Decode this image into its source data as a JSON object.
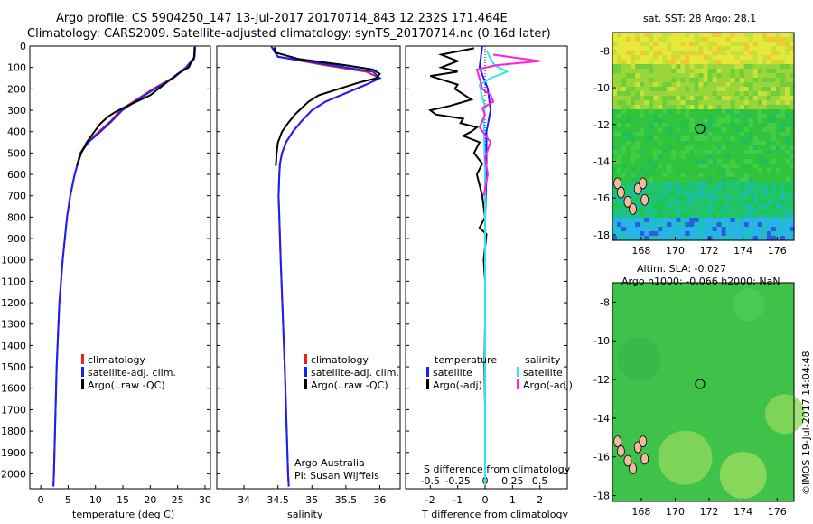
{
  "header": {
    "line1": "Argo profile: CS 5904250_147 13-Jul-2017 20170714_843 12.232S 171.464E",
    "line2": "Climatology: CARS2009. Satellite-adjusted climatology: synTS_20170714.nc (0.16d later)"
  },
  "colors": {
    "climatology": "#e8231f",
    "satellite": "#1420ff",
    "argo": "#000000",
    "sal_satellite": "#2ee6e6",
    "sal_argo": "#ff1fe0"
  },
  "panels": {
    "temperature": {
      "xlabel": "temperature (deg C)",
      "legend": [
        "climatology",
        "satellite-adj. clim.",
        "Argo(..raw -QC)"
      ]
    },
    "salinity": {
      "xlabel": "salinity",
      "legend": [
        "climatology",
        "satellite-adj. clim.",
        "Argo(..raw -QC)"
      ],
      "credit1": "Argo Australia",
      "credit2": "PI: Susan Wijffels"
    },
    "difference": {
      "top_label": "S difference from climatology",
      "xlabel": "T difference from climatology",
      "legend_head_t": "temperature",
      "legend_head_s": "salinity",
      "legend_t": [
        "satellite",
        "Argo(-adj)"
      ],
      "legend_s": [
        "satellite",
        "Argo(-adj)"
      ]
    }
  },
  "maps": {
    "sst_title": "sat. SST: 28 Argo: 28.1",
    "sla_title1": "Altim. SLA: -0.027",
    "sla_title2": "Argo h1000: -0.066 h2000: NaN",
    "xticks": [
      "168",
      "170",
      "172",
      "174",
      "176"
    ],
    "yticks": [
      "-8",
      "-10",
      "-12",
      "-14",
      "-16",
      "-18"
    ],
    "argo_lon": 171.464,
    "argo_lat": -12.232,
    "stamp": "©IMOS 19-Jul-2017 14:04:48"
  },
  "chart_data": [
    {
      "type": "line",
      "name": "temperature profile",
      "xlabel": "temperature (deg C)",
      "ylabel": "",
      "xlim": [
        -2,
        31
      ],
      "ylim": [
        2070,
        0
      ],
      "xticks": [
        0,
        5,
        10,
        15,
        20,
        25,
        30
      ],
      "yticks": [
        0,
        100,
        200,
        300,
        400,
        500,
        600,
        700,
        800,
        900,
        1000,
        1100,
        1200,
        1300,
        1400,
        1500,
        1600,
        1700,
        1800,
        1900,
        2000
      ],
      "series": [
        {
          "name": "climatology",
          "depth": [
            0,
            50,
            100,
            150,
            200,
            250,
            300,
            350,
            400,
            450,
            500,
            600,
            700,
            800,
            1000,
            1200,
            1500,
            1800,
            2000,
            2060
          ],
          "values": [
            28.2,
            28.1,
            26.5,
            24.0,
            20.5,
            17.5,
            14.5,
            12.8,
            10.6,
            8.5,
            7.2,
            6.2,
            5.4,
            4.8,
            4.0,
            3.4,
            2.9,
            2.6,
            2.4,
            2.3
          ]
        },
        {
          "name": "satellite-adj. clim.",
          "depth": [
            0,
            50,
            100,
            150,
            200,
            250,
            300,
            350,
            400,
            450,
            500,
            600,
            700,
            800,
            1000,
            1200,
            1500,
            1800,
            2000,
            2060
          ],
          "values": [
            28.2,
            28.1,
            26.6,
            24.2,
            20.8,
            17.8,
            14.9,
            13.0,
            10.9,
            8.7,
            7.3,
            6.2,
            5.4,
            4.8,
            4.0,
            3.4,
            2.9,
            2.6,
            2.4,
            2.3
          ]
        },
        {
          "name": "Argo(..raw -QC)",
          "depth": [
            5,
            60,
            80,
            100,
            130,
            150,
            180,
            200,
            230,
            260,
            290,
            310,
            330,
            360,
            400,
            450,
            500,
            560
          ],
          "values": [
            28.1,
            28.0,
            27.4,
            27.0,
            25.0,
            24.0,
            22.5,
            21.5,
            20.0,
            17.5,
            15.0,
            13.5,
            12.3,
            11.0,
            9.8,
            8.4,
            7.4,
            6.6
          ]
        }
      ]
    },
    {
      "type": "line",
      "name": "salinity profile",
      "xlabel": "salinity",
      "ylabel": "",
      "xlim": [
        33.6,
        36.3
      ],
      "ylim": [
        2070,
        0
      ],
      "xticks": [
        34,
        34.5,
        35,
        35.5,
        36
      ],
      "series": [
        {
          "name": "climatology",
          "depth": [
            0,
            50,
            90,
            120,
            150,
            180,
            220,
            260,
            300,
            350,
            400,
            450,
            500,
            550,
            600,
            700,
            800,
            1000,
            1500,
            2000,
            2060
          ],
          "values": [
            34.4,
            34.5,
            35.2,
            35.8,
            36.0,
            35.8,
            35.5,
            35.2,
            35.0,
            34.85,
            34.72,
            34.62,
            34.56,
            34.53,
            34.52,
            34.51,
            34.52,
            34.54,
            34.6,
            34.65,
            34.66
          ]
        },
        {
          "name": "satellite-adj. clim.",
          "depth": [
            0,
            50,
            90,
            120,
            150,
            180,
            220,
            260,
            300,
            350,
            400,
            450,
            500,
            550,
            600,
            700,
            800,
            1000,
            1500,
            2000,
            2060
          ],
          "values": [
            34.4,
            34.5,
            35.3,
            35.9,
            36.0,
            35.8,
            35.5,
            35.2,
            35.0,
            34.85,
            34.72,
            34.62,
            34.56,
            34.53,
            34.52,
            34.51,
            34.52,
            34.54,
            34.6,
            34.65,
            34.66
          ]
        },
        {
          "name": "Argo(..raw -QC)",
          "depth": [
            5,
            30,
            60,
            90,
            110,
            130,
            150,
            170,
            200,
            230,
            260,
            290,
            320,
            360,
            400,
            450,
            500,
            560
          ],
          "values": [
            34.45,
            34.46,
            34.8,
            35.5,
            35.9,
            36.0,
            35.95,
            35.7,
            35.4,
            35.1,
            34.95,
            34.85,
            34.75,
            34.65,
            34.56,
            34.5,
            34.48,
            34.47
          ]
        }
      ]
    },
    {
      "type": "line",
      "name": "difference from climatology",
      "xlabel": "T difference from climatology",
      "ylabel": "",
      "xlim": [
        -2.9,
        3.0
      ],
      "ylim": [
        2070,
        0
      ],
      "xticks": [
        -2,
        -1,
        0,
        1,
        2
      ],
      "top_xticks": [
        "-0.5",
        "-0.25",
        "0",
        "0.25",
        "0.5"
      ],
      "series": [
        {
          "name": "temperature satellite",
          "depth": [
            0,
            100,
            200,
            300,
            400,
            600,
            800,
            1200,
            2050
          ],
          "values": [
            -0.1,
            -0.2,
            0.1,
            0.2,
            0.05,
            0.05,
            0.0,
            0.0,
            0.0
          ]
        },
        {
          "name": "temperature Argo(-adj)",
          "depth": [
            10,
            40,
            70,
            100,
            120,
            140,
            160,
            180,
            200,
            250,
            280,
            300,
            320,
            340,
            360,
            380,
            400,
            420,
            450,
            500,
            550,
            600,
            700,
            800,
            850,
            880,
            1000,
            1100,
            1300,
            1500,
            1700,
            1900,
            2050
          ],
          "values": [
            -0.4,
            -1.6,
            -1.0,
            -1.6,
            -1.0,
            -2.0,
            -1.5,
            -1.0,
            -1.1,
            -0.5,
            -1.3,
            -2.0,
            -1.8,
            -0.8,
            -0.9,
            -0.3,
            -0.5,
            -0.8,
            -0.2,
            -0.4,
            -0.1,
            -0.3,
            -0.1,
            0.0,
            -0.2,
            0.05,
            -0.05,
            0.0,
            0.0,
            -0.02,
            0.0,
            0.0,
            0.0
          ]
        },
        {
          "name": "salinity satellite",
          "depth": [
            20,
            60,
            90,
            120,
            150,
            180,
            240,
            280,
            350,
            600,
            1000,
            2050
          ],
          "values": [
            0.05,
            0.2,
            0.35,
            0.8,
            0.2,
            -0.2,
            -0.1,
            0.0,
            -0.05,
            0.0,
            0.0,
            0.0
          ]
        },
        {
          "name": "salinity Argo(-adj)",
          "depth": [
            40,
            70,
            90,
            110,
            150,
            200,
            230,
            260,
            290,
            320,
            380,
            450,
            520,
            600,
            700
          ],
          "values": [
            0.3,
            2.0,
            0.4,
            -0.3,
            -0.2,
            -0.1,
            0.2,
            0.3,
            -0.1,
            0.0,
            -0.2,
            0.2,
            0.0,
            0.1,
            -0.05
          ]
        }
      ]
    },
    {
      "type": "heatmap",
      "name": "sat. SST map",
      "xlim": [
        166.3,
        177.0
      ],
      "ylim": [
        -18.3,
        -7.0
      ],
      "values": "sea surface temperature field",
      "marker": [
        171.464,
        -12.232
      ]
    },
    {
      "type": "heatmap",
      "name": "Altim. SLA map",
      "xlim": [
        166.3,
        177.0
      ],
      "ylim": [
        -18.3,
        -7.0
      ],
      "values": "sea level anomaly field",
      "marker": [
        171.464,
        -12.232
      ]
    }
  ]
}
